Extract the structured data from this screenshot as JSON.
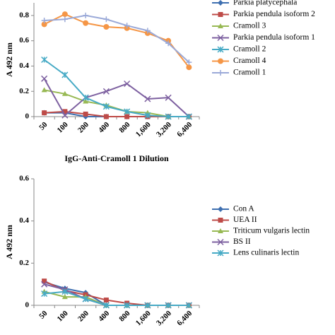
{
  "chart_data": [
    {
      "type": "line",
      "ylabel": "A 492 nm",
      "xlabel": "IgG-Anti-Cramoll 1 Dilution",
      "categories": [
        "50",
        "100",
        "200",
        "400",
        "800",
        "1,600",
        "3,200",
        "6,400"
      ],
      "ylim": [
        0,
        0.9
      ],
      "yticks": [
        0,
        0.2,
        0.4,
        0.6,
        0.8
      ],
      "series": [
        {
          "name": "Parkia platycephala",
          "color": "#3e6fb0",
          "marker": "diamond",
          "values": [
            0.03,
            0.03,
            0.0,
            0,
            0,
            0,
            0,
            0
          ]
        },
        {
          "name": "Parkia pendula isoform 2",
          "color": "#be4b48",
          "marker": "square",
          "values": [
            0.03,
            0.04,
            0.02,
            0.0,
            0.0,
            0,
            0,
            0
          ]
        },
        {
          "name": "Cramoll 3",
          "color": "#98b954",
          "marker": "triangle",
          "values": [
            0.21,
            0.18,
            0.12,
            0.09,
            0.04,
            0.03,
            0.0,
            0.0
          ]
        },
        {
          "name": "Parkia pendula isoform 1",
          "color": "#7d60a0",
          "marker": "x",
          "values": [
            0.3,
            0.01,
            0.15,
            0.2,
            0.26,
            0.14,
            0.15,
            0.0
          ]
        },
        {
          "name": "Cramoll 2",
          "color": "#46aac5",
          "marker": "star",
          "values": [
            0.45,
            0.33,
            0.15,
            0.08,
            0.04,
            0.01,
            0.0,
            0.0
          ]
        },
        {
          "name": "Cramoll 4",
          "color": "#f59646",
          "marker": "circle",
          "values": [
            0.73,
            0.81,
            0.74,
            0.71,
            0.7,
            0.66,
            0.6,
            0.39
          ]
        },
        {
          "name": "Cramoll 1",
          "color": "#9aa9d8",
          "marker": "plus",
          "values": [
            0.76,
            0.77,
            0.8,
            0.77,
            0.72,
            0.68,
            0.58,
            0.43
          ]
        }
      ]
    },
    {
      "type": "line",
      "ylabel": "A 492 nm",
      "categories": [
        "50",
        "100",
        "200",
        "400",
        "800",
        "1,600",
        "3,200",
        "6,400"
      ],
      "ylim": [
        0,
        0.6
      ],
      "yticks": [
        0,
        0.2,
        0.4,
        0.6
      ],
      "series": [
        {
          "name": "Con A",
          "color": "#3e6fb0",
          "marker": "diamond",
          "values": [
            0.11,
            0.08,
            0.06,
            0.0,
            0,
            0,
            0,
            0
          ]
        },
        {
          "name": "UEA II",
          "color": "#be4b48",
          "marker": "square",
          "values": [
            0.115,
            0.07,
            0.05,
            0.025,
            0.01,
            0,
            0,
            0
          ]
        },
        {
          "name": "Triticum vulgaris lectin",
          "color": "#98b954",
          "marker": "triangle",
          "values": [
            0.065,
            0.04,
            0.04,
            0.0,
            0,
            0,
            0,
            0
          ]
        },
        {
          "name": "BS II",
          "color": "#7d60a0",
          "marker": "x",
          "values": [
            0.1,
            0.075,
            0.03,
            0.0,
            0,
            0,
            0,
            0
          ]
        },
        {
          "name": "Lens culinaris lectin",
          "color": "#46aac5",
          "marker": "star",
          "values": [
            0.055,
            0.065,
            0.03,
            0.0,
            0,
            0,
            0,
            0
          ]
        }
      ]
    }
  ]
}
